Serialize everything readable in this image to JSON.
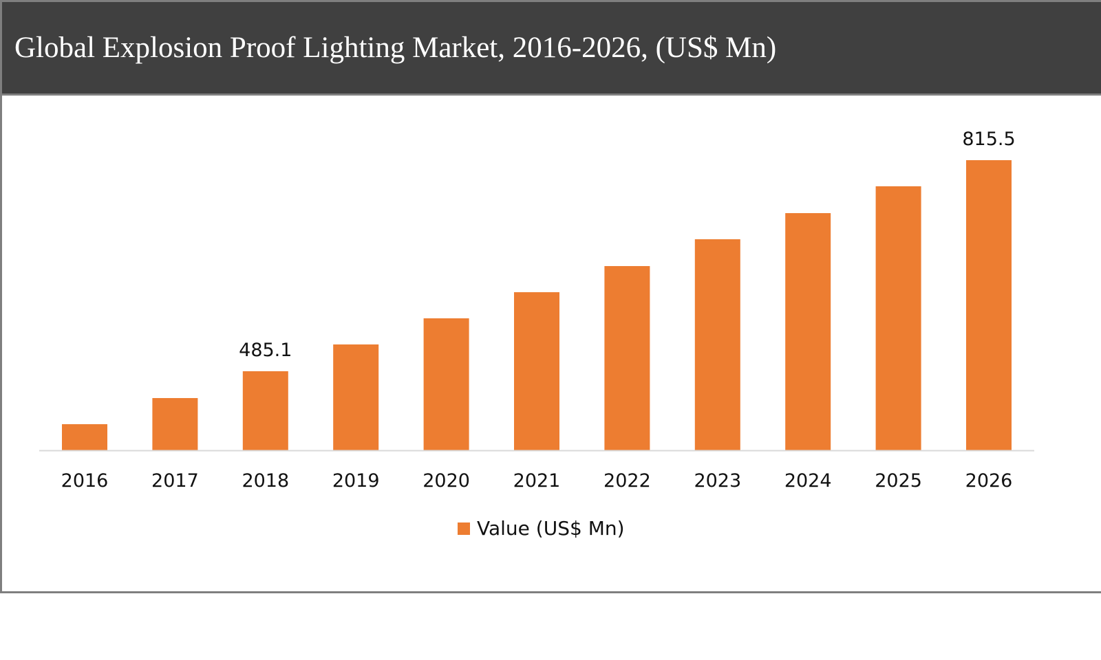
{
  "chart_data": {
    "type": "bar",
    "title": "Global Explosion Proof Lighting Market, 2016-2026, (US$ Mn)",
    "xlabel": "",
    "ylabel": "",
    "categories": [
      "2016",
      "2017",
      "2018",
      "2019",
      "2020",
      "2021",
      "2022",
      "2023",
      "2024",
      "2025",
      "2026"
    ],
    "series": [
      {
        "name": "Value (US$ Mn)",
        "values": [
          402.2,
          443.1,
          485.1,
          527.0,
          567.9,
          608.8,
          649.7,
          691.7,
          732.6,
          774.6,
          815.5
        ]
      }
    ],
    "data_labels": [
      {
        "category": "2018",
        "label": "485.1"
      },
      {
        "category": "2026",
        "label": "815.5"
      }
    ],
    "ylim": [
      361,
      830
    ],
    "y_axis_visible": false,
    "grid": false,
    "legend_position": "bottom",
    "colors": {
      "bar": "#ed7d31",
      "header": "#404040",
      "frame": "#7f7f7f",
      "axis": "#d9d9d9"
    }
  }
}
